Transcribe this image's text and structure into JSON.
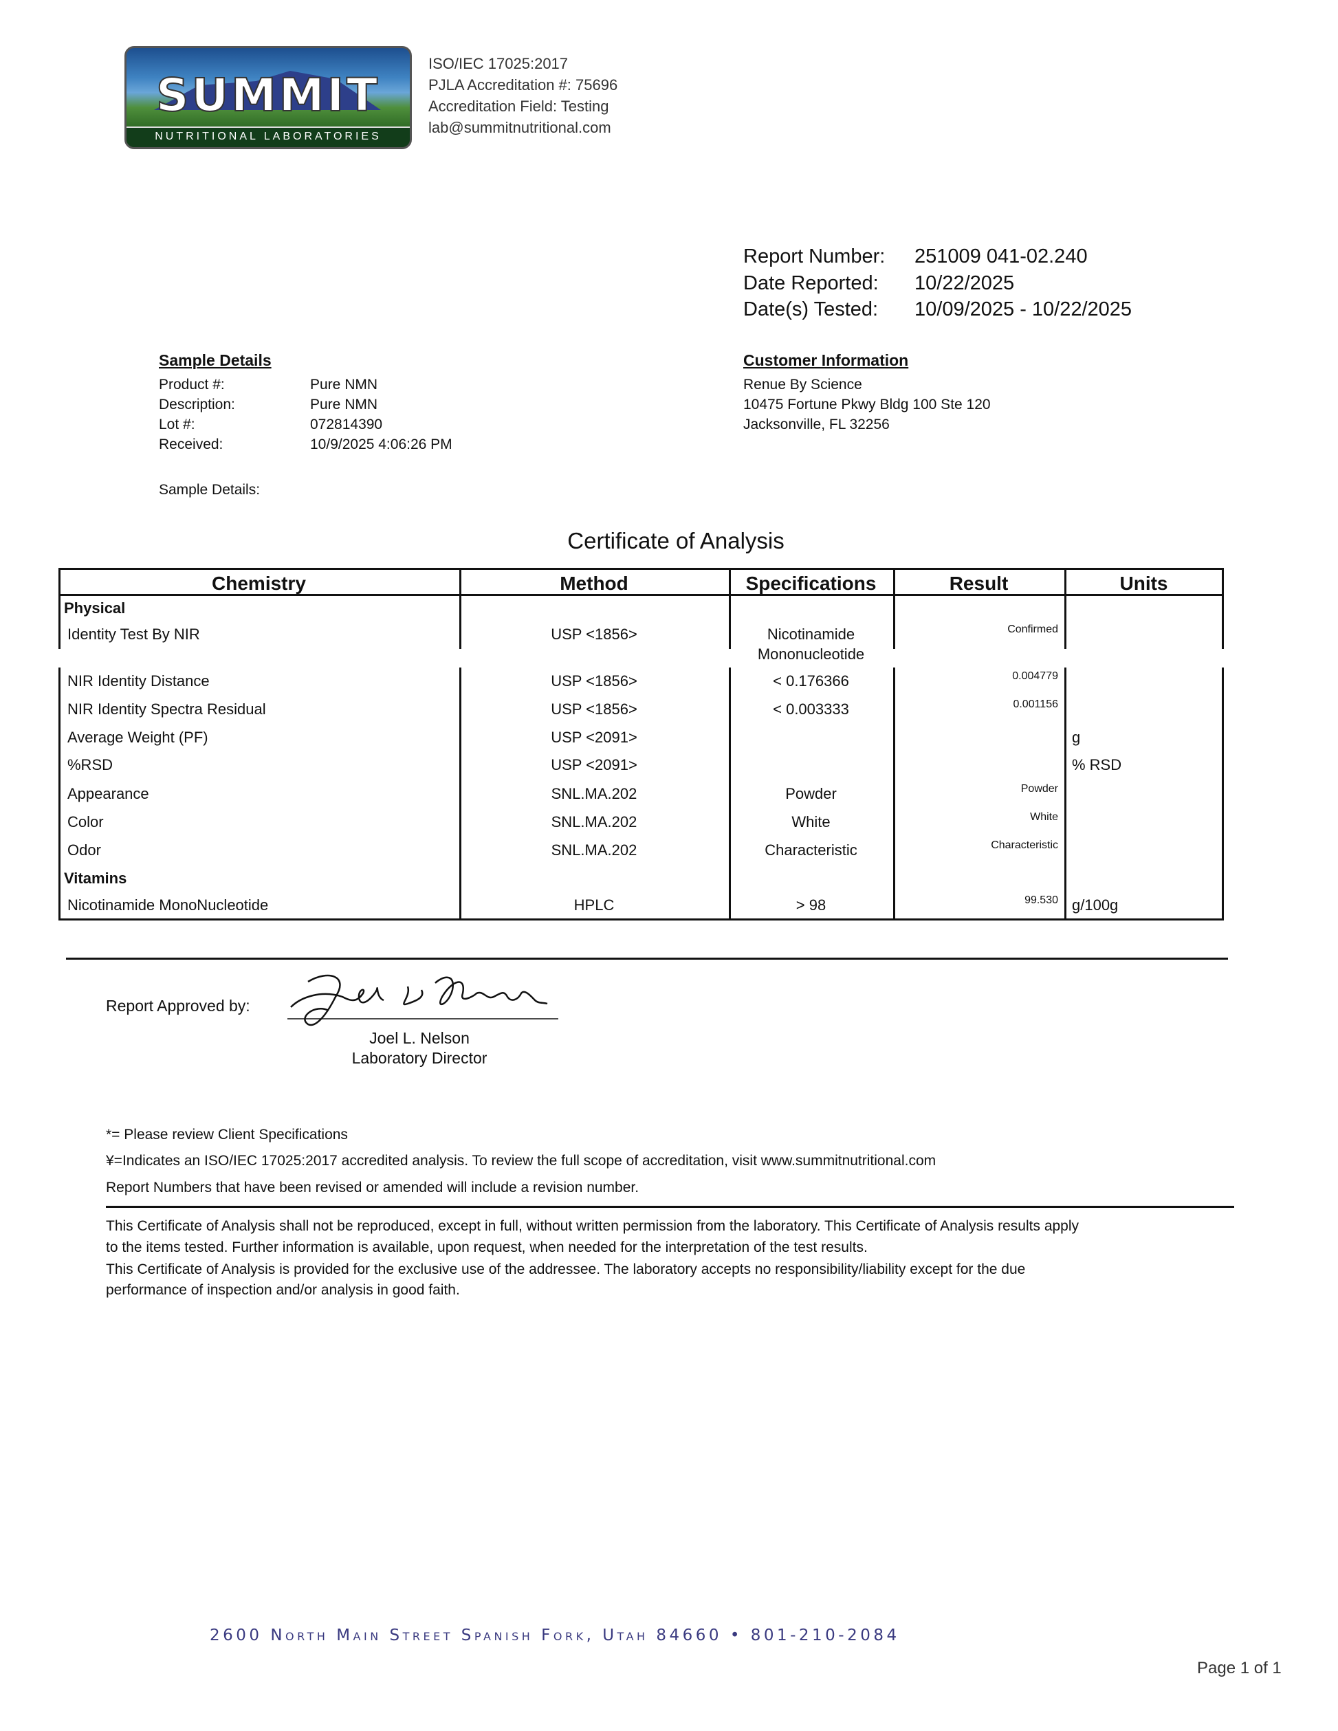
{
  "logo": {
    "word": "SUMMIT",
    "subtitle": "NUTRITIONAL LABORATORIES"
  },
  "header_lines": [
    "ISO/IEC 17025:2017",
    "PJLA Accreditation #: 75696",
    "Accreditation Field: Testing",
    "lab@summitnutritional.com"
  ],
  "report": {
    "number_label": "Report Number:",
    "number": "251009 041-02.240",
    "reported_label": "Date Reported:",
    "reported": "10/22/2025",
    "tested_label": "Date(s) Tested:",
    "tested": "10/09/2025 - 10/22/2025"
  },
  "sample": {
    "heading": "Sample Details",
    "fields": [
      {
        "label": "Product #:",
        "value": "Pure NMN"
      },
      {
        "label": "Description:",
        "value": "Pure NMN"
      },
      {
        "label": "Lot #:",
        "value": "072814390"
      },
      {
        "label": "Received:",
        "value": "10/9/2025 4:06:26 PM"
      }
    ],
    "details_label": "Sample Details:"
  },
  "customer": {
    "heading": "Customer Information",
    "lines": [
      "Renue By Science",
      "10475 Fortune Pkwy Bldg 100 Ste 120",
      "Jacksonville, FL 32256"
    ]
  },
  "certificate_title": "Certificate of Analysis",
  "table": {
    "headers": [
      "Chemistry",
      "Method",
      "Specifications",
      "Result",
      "Units"
    ],
    "rows": [
      {
        "section": "Physical"
      },
      {
        "name": "Identity Test By NIR",
        "method": "USP <1856>",
        "spec": "Nicotinamide",
        "spec2": "Mononucleotide",
        "result": "Confirmed",
        "units": ""
      },
      {
        "name": "NIR Identity Distance",
        "method": "USP <1856>",
        "spec": "< 0.176366",
        "result": "0.004779",
        "units": ""
      },
      {
        "name": "NIR Identity Spectra Residual",
        "method": "USP <1856>",
        "spec": "< 0.003333",
        "result": "0.001156",
        "units": ""
      },
      {
        "name": "Average Weight (PF)",
        "method": "USP <2091>",
        "spec": "",
        "result": "",
        "units": "g"
      },
      {
        "name": "%RSD",
        "method": "USP <2091>",
        "spec": "",
        "result": "",
        "units": "% RSD"
      },
      {
        "name": "Appearance",
        "method": "SNL.MA.202",
        "spec": "Powder",
        "result": "Powder",
        "units": ""
      },
      {
        "name": "Color",
        "method": "SNL.MA.202",
        "spec": "White",
        "result": "White",
        "units": ""
      },
      {
        "name": "Odor",
        "method": "SNL.MA.202",
        "spec": "Characteristic",
        "result": "Characteristic",
        "units": ""
      },
      {
        "section": "Vitamins"
      },
      {
        "name": "Nicotinamide MonoNucleotide",
        "method": "HPLC",
        "spec": "> 98",
        "result": "99.530",
        "units": "g/100g"
      }
    ]
  },
  "approval": {
    "label": "Report Approved by:",
    "name": "Joel L. Nelson",
    "title": "Laboratory Director"
  },
  "notes": [
    "*= Please review Client Specifications",
    "¥=Indicates an ISO/IEC 17025:2017 accredited analysis. To review the full scope of accreditation, visit www.summitnutritional.com",
    "Report Numbers that have been revised or amended will include a revision number."
  ],
  "disclaimer": [
    "This Certificate of Analysis shall not be reproduced, except in full, without written permission from the laboratory. This Certificate of Analysis results apply",
    "to the items tested. Further information is available, upon request, when needed for the interpretation of the test results.",
    "This Certificate of Analysis is provided for the exclusive use of the addressee. The laboratory accepts no responsibility/liability except for the due",
    "performance of inspection and/or analysis in good faith."
  ],
  "footer": {
    "address": "2600 North Main Street Spanish Fork, Utah  84660 • 801-210-2084",
    "page": "Page 1 of 1",
    "address_color": "#3a3a80"
  }
}
